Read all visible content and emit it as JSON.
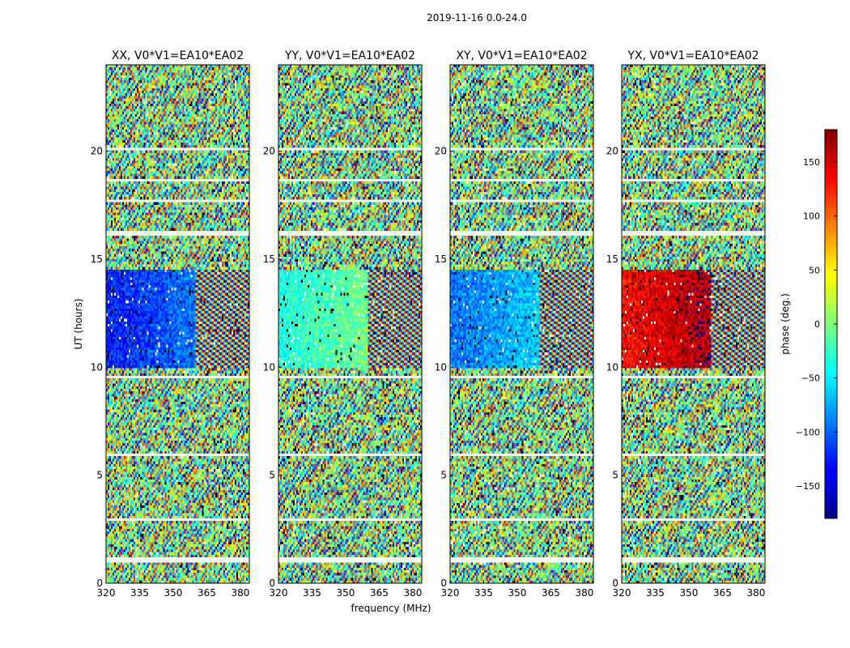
{
  "figure": {
    "suptitle": "2019-11-16 0.0-24.0",
    "xlabel": "frequency (MHz)",
    "ylabel": "UT (hours)"
  },
  "chart_data": [
    {
      "type": "heatmap",
      "title": "XX, V0*V1=EA10*EA02",
      "x_ticks": [
        "320",
        "335",
        "350",
        "365",
        "380"
      ],
      "y_ticks": [
        "0",
        "5",
        "10",
        "15",
        "20"
      ],
      "xlim": [
        320,
        384
      ],
      "ylim": [
        0,
        24
      ],
      "calibrated_bias_deg": -130
    },
    {
      "type": "heatmap",
      "title": "YY, V0*V1=EA10*EA02",
      "x_ticks": [
        "320",
        "335",
        "350",
        "365",
        "380"
      ],
      "y_ticks": [
        "0",
        "5",
        "10",
        "15",
        "20"
      ],
      "xlim": [
        320,
        384
      ],
      "ylim": [
        0,
        24
      ],
      "calibrated_bias_deg": -40
    },
    {
      "type": "heatmap",
      "title": "XY, V0*V1=EA10*EA02",
      "x_ticks": [
        "320",
        "335",
        "350",
        "365",
        "380"
      ],
      "y_ticks": [
        "0",
        "5",
        "10",
        "15",
        "20"
      ],
      "xlim": [
        320,
        384
      ],
      "ylim": [
        0,
        24
      ],
      "calibrated_bias_deg": -100
    },
    {
      "type": "heatmap",
      "title": "YX, V0*V1=EA10*EA02",
      "x_ticks": [
        "320",
        "335",
        "350",
        "365",
        "380"
      ],
      "y_ticks": [
        "0",
        "5",
        "10",
        "15",
        "20"
      ],
      "xlim": [
        320,
        384
      ],
      "ylim": [
        0,
        24
      ],
      "calibrated_bias_deg": 130
    }
  ],
  "colorbar": {
    "label": "phase (deg.)",
    "ticks": [
      "150",
      "100",
      "50",
      "0",
      "−50",
      "−100",
      "−150"
    ],
    "tick_values": [
      150,
      100,
      50,
      0,
      -50,
      -100,
      -150
    ],
    "range": [
      -180,
      180
    ],
    "colormap": "jet"
  },
  "calibrated_interval_hours": [
    10.0,
    14.5
  ],
  "gap_bands_hours": [
    [
      1.0,
      1.15
    ],
    [
      2.9,
      3.0
    ],
    [
      4.15,
      4.25
    ],
    [
      5.9,
      6.0
    ],
    [
      9.5,
      9.6
    ],
    [
      16.1,
      16.3
    ],
    [
      17.6,
      17.7
    ],
    [
      18.6,
      18.7
    ],
    [
      20.05,
      20.15
    ]
  ]
}
